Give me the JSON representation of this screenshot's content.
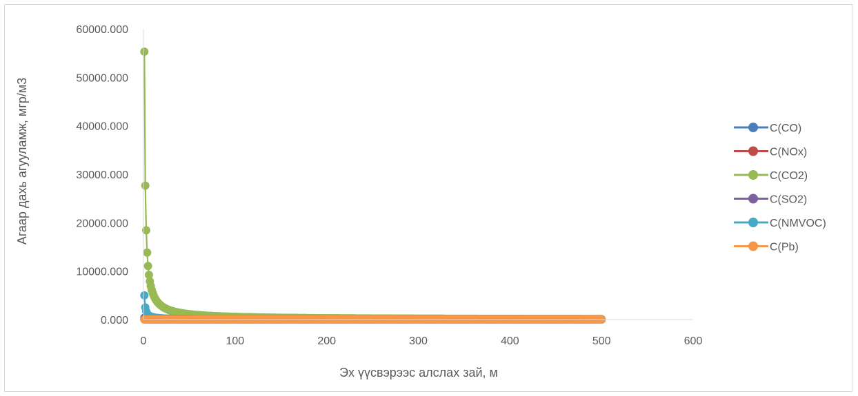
{
  "chart_data": {
    "type": "scatter",
    "title": "",
    "xlabel": "Эх үүсвэрээс алслах зай, м",
    "ylabel": "Агаар дахь агууламж, мгр/м3",
    "xlim": [
      0,
      600
    ],
    "ylim": [
      0,
      60000
    ],
    "x_ticks": [
      "0",
      "100",
      "200",
      "300",
      "400",
      "500",
      "600"
    ],
    "y_ticks": [
      "0.000",
      "10000.000",
      "20000.000",
      "30000.000",
      "40000.000",
      "50000.000",
      "60000.000"
    ],
    "x_range": [
      1,
      500
    ],
    "grid": false,
    "legend_position": "right",
    "series": [
      {
        "name": "C(CO)",
        "color": "#4a7ebb",
        "peak": 400
      },
      {
        "name": "C(NOx)",
        "color": "#be4b48",
        "peak": 120
      },
      {
        "name": "C(CO2)",
        "color": "#98b954",
        "peak": 55300
      },
      {
        "name": "C(SO2)",
        "color": "#7d60a0",
        "peak": 30
      },
      {
        "name": "C(NMVOC)",
        "color": "#46aac5",
        "peak": 5000
      },
      {
        "name": "C(Pb)",
        "color": "#f79646",
        "peak": 5
      }
    ]
  }
}
